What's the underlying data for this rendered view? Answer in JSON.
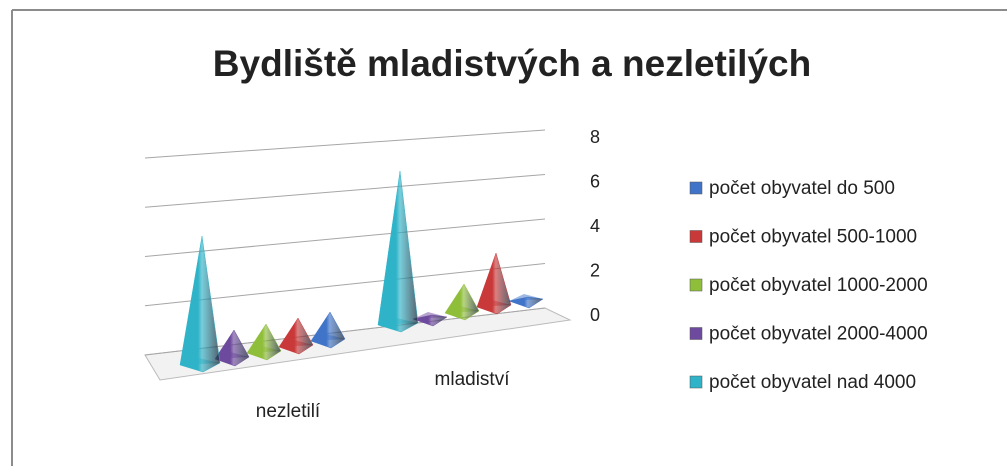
{
  "chart_data": {
    "type": "pyramid3d",
    "title": "Bydliště mladistvých a nezletilých",
    "categories": [
      "nezletilí",
      "mladiství"
    ],
    "series": [
      {
        "name": "počet obyvatel do 500",
        "color": "#3f74c9",
        "values": [
          1,
          0
        ]
      },
      {
        "name": "počet obyvatel 500-1000",
        "color": "#c9393a",
        "values": [
          1,
          2
        ]
      },
      {
        "name": "počet obyvatel 1000-2000",
        "color": "#8fbe3a",
        "values": [
          1,
          1
        ]
      },
      {
        "name": "počet obyvatel 2000-4000",
        "color": "#6e4a9e",
        "values": [
          1,
          0
        ]
      },
      {
        "name": "počet obyvatel nad 4000",
        "color": "#2fb3c8",
        "values": [
          5,
          6
        ]
      }
    ],
    "ylim": [
      0,
      8
    ],
    "yticks": [
      0,
      2,
      4,
      6,
      8
    ],
    "grid": true
  }
}
